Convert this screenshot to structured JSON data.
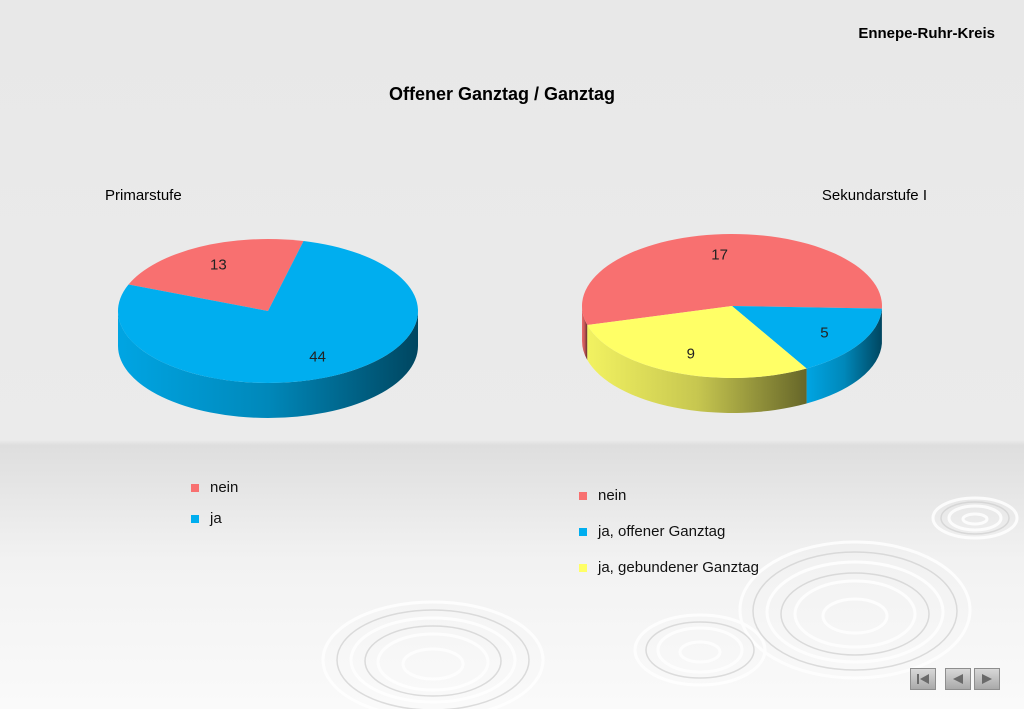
{
  "header": {
    "region": "Ennepe-Ruhr-Kreis",
    "title": "Offener Ganztag / Ganztag"
  },
  "chart_data": [
    {
      "type": "pie",
      "title": "Primarstufe",
      "slices": [
        {
          "label": "nein",
          "value": 13,
          "color": "#f87070"
        },
        {
          "label": "ja",
          "value": 44,
          "color": "#00aeef"
        }
      ],
      "legend_position": "bottom"
    },
    {
      "type": "pie",
      "title": "Sekundarstufe I",
      "slices": [
        {
          "label": "nein",
          "value": 17,
          "color": "#f87070"
        },
        {
          "label": "ja, offener Ganztag",
          "value": 5,
          "color": "#00aeef"
        },
        {
          "label": "ja, gebundener Ganztag",
          "value": 9,
          "color": "#ffff66"
        }
      ],
      "legend_position": "bottom"
    }
  ],
  "nav": {
    "icons": [
      "first-slide-icon",
      "previous-slide-icon",
      "next-slide-icon"
    ]
  }
}
